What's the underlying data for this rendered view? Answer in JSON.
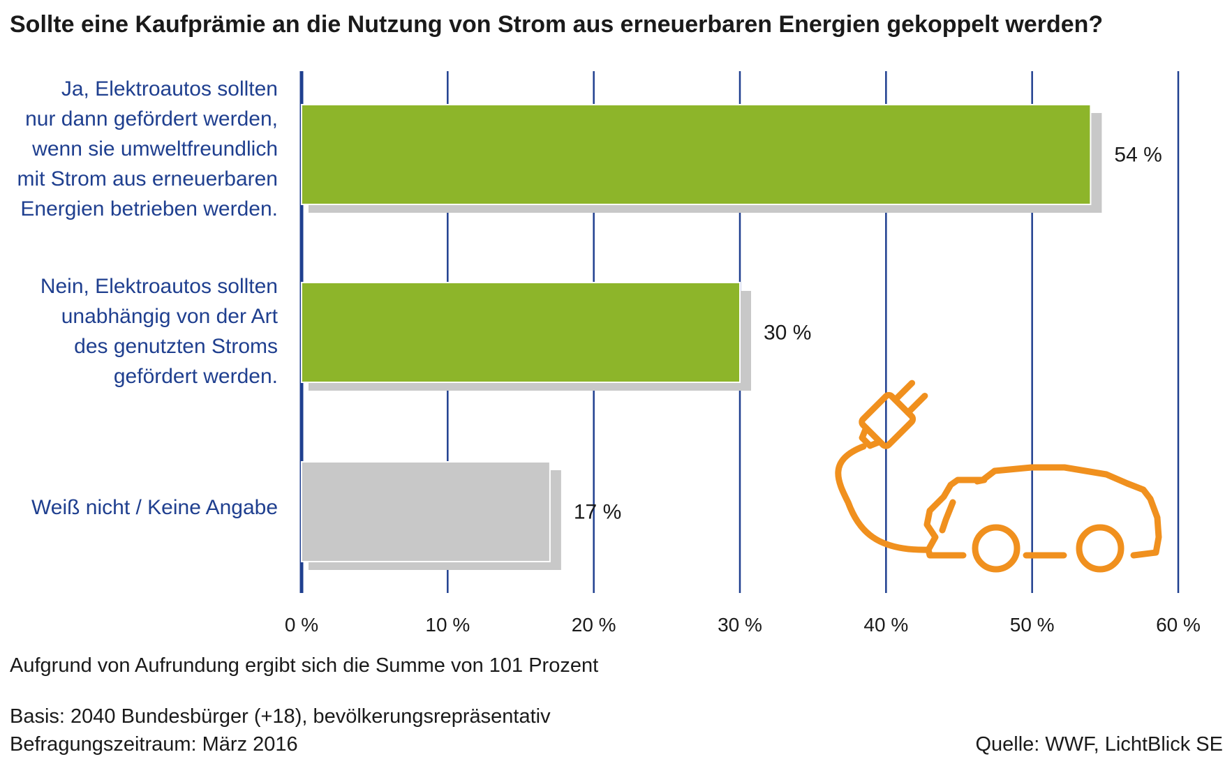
{
  "title": "Sollte eine Kaufprämie an die Nutzung von Strom aus erneuerbaren Energien gekoppelt werden?",
  "chart_data": {
    "type": "bar",
    "orientation": "horizontal",
    "categories": [
      {
        "lines": [
          "Ja, Elektroautos sollten",
          "nur dann gefördert werden,",
          "wenn sie umweltfreundlich",
          "mit Strom aus erneuerbaren",
          "Energien betrieben werden."
        ],
        "value": 54,
        "label": "54 %",
        "color": "#8db52a"
      },
      {
        "lines": [
          "Nein, Elektroautos sollten",
          "unabhängig von der Art",
          "des genutzten Stroms",
          "gefördert werden."
        ],
        "value": 30,
        "label": "30 %",
        "color": "#8db52a"
      },
      {
        "lines": [
          "Weiß nicht / Keine Angabe"
        ],
        "value": 17,
        "label": "17 %",
        "color": "#c8c8c8"
      }
    ],
    "xlim": [
      0,
      60
    ],
    "ticks": [
      {
        "value": 0,
        "label": "0 %"
      },
      {
        "value": 10,
        "label": "10 %"
      },
      {
        "value": 20,
        "label": "20 %"
      },
      {
        "value": 30,
        "label": "30 %"
      },
      {
        "value": 40,
        "label": "40 %"
      },
      {
        "value": 50,
        "label": "50 %"
      },
      {
        "value": 60,
        "label": "60 %"
      }
    ],
    "grid": true,
    "colors": {
      "axis": "#1f3f8f",
      "grid": "#1f3f8f",
      "shadow": "#c8c8c8",
      "icon": "#f0901e"
    }
  },
  "footnote": "Aufgrund von Aufrundung ergibt sich die Summe von 101 Prozent",
  "basis": "Basis: 2040 Bundesbürger (+18), bevölkerungsrepräsentativ",
  "period": "Befragungszeitraum: März 2016",
  "source": "Quelle: WWF, LichtBlick SE",
  "icon": "electric-car-plug-icon"
}
